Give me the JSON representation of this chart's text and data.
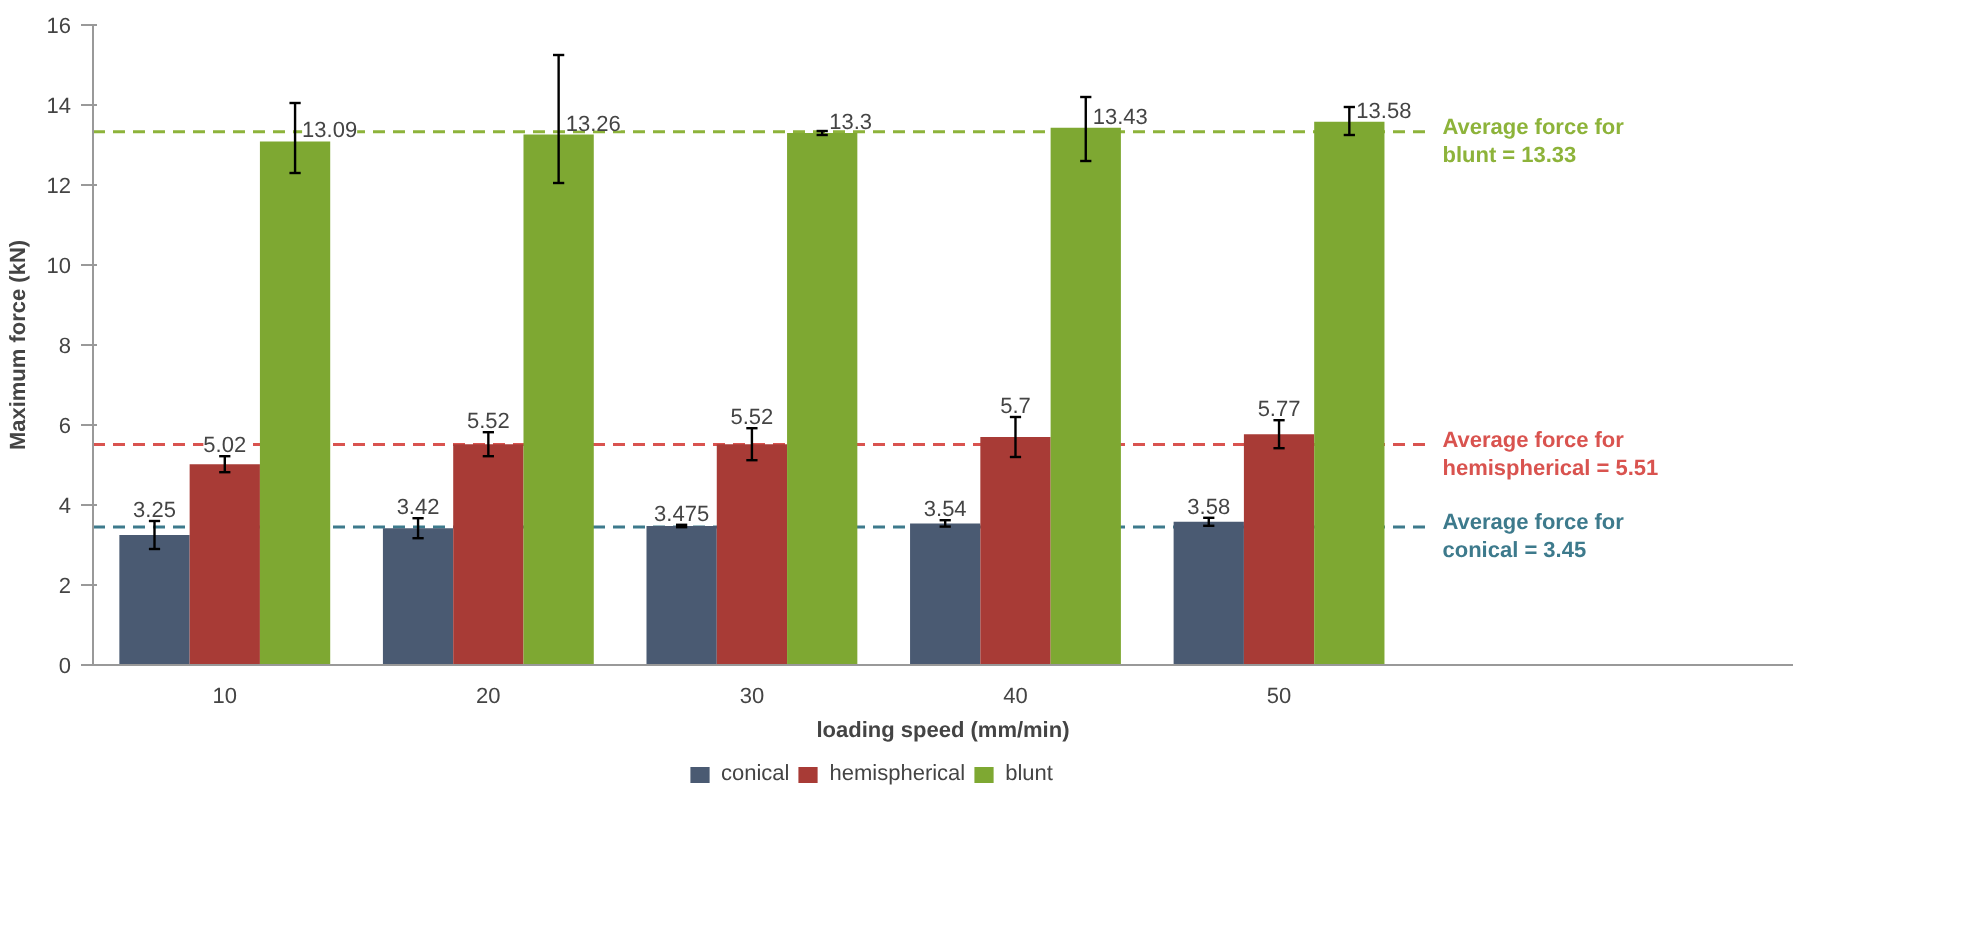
{
  "chart_data": {
    "type": "bar",
    "xlabel": "loading speed (mm/min)",
    "ylabel": "Maximum force (kN)",
    "categories": [
      "10",
      "20",
      "30",
      "40",
      "50"
    ],
    "series": [
      {
        "name": "conical",
        "color": "#4a5a72",
        "values": [
          3.25,
          3.42,
          3.475,
          3.54,
          3.58
        ],
        "errors": [
          0.35,
          0.25,
          0.03,
          0.08,
          0.1
        ]
      },
      {
        "name": "hemispherical",
        "color": "#a83b36",
        "values": [
          5.02,
          5.52,
          5.52,
          5.7,
          5.77
        ],
        "errors": [
          0.2,
          0.3,
          0.4,
          0.5,
          0.35
        ]
      },
      {
        "name": "blunt",
        "color": "#7ea832",
        "values": [
          13.09,
          13.26,
          13.3,
          13.43,
          13.58
        ],
        "errors": [
          [
            12.3,
            14.05
          ],
          [
            12.05,
            15.25
          ],
          0.05,
          [
            12.6,
            14.2
          ],
          [
            13.25,
            13.95
          ]
        ]
      }
    ],
    "ylim": [
      0,
      16
    ],
    "yticks": [
      0,
      2,
      4,
      6,
      8,
      10,
      12,
      14,
      16
    ],
    "ref_lines": [
      {
        "axis": "y",
        "value": 13.33,
        "label": "Average force for blunt = 13.33",
        "color": "#8db33a",
        "line_style": "dashed"
      },
      {
        "axis": "y",
        "value": 5.51,
        "label": "Average force for hemispherical = 5.51",
        "color": "#d9534f",
        "line_style": "dashed"
      },
      {
        "axis": "y",
        "value": 3.45,
        "label": "Average force for conical = 3.45",
        "color": "#3d7a8c",
        "line_style": "dashed"
      }
    ],
    "data_labels": true,
    "grid": false,
    "legend": "bottom"
  }
}
